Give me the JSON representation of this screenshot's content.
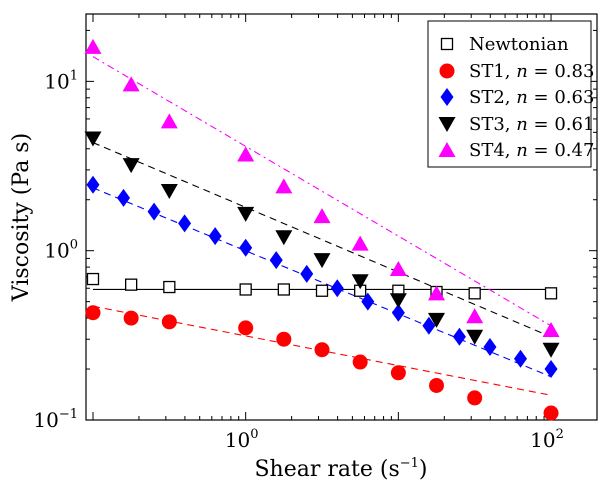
{
  "chart_data": {
    "type": "scatter",
    "xlabel": "Shear rate (s",
    "xlabel_sup": "−1",
    "xlabel_end": ")",
    "ylabel": "Viscosity (Pa s)",
    "xscale": "log",
    "yscale": "log",
    "xlim": [
      0.09,
      200
    ],
    "ylim": [
      0.1,
      25
    ],
    "x_ticks": [
      {
        "value": 1,
        "base": "10",
        "exp": "0"
      },
      {
        "value": 100,
        "base": "10",
        "exp": "2"
      }
    ],
    "y_ticks": [
      {
        "value": 0.1,
        "base": "10",
        "exp": "−1"
      },
      {
        "value": 1,
        "base": "10",
        "exp": "0"
      },
      {
        "value": 10,
        "base": "10",
        "exp": "1"
      }
    ],
    "grid": false,
    "legend_position": "top-right",
    "series": [
      {
        "name": "Newtonian",
        "marker": "square-open",
        "color": "#000000",
        "line_style": "solid",
        "fit": {
          "x0": 0.1,
          "x1": 100,
          "y0": 0.59,
          "y1": 0.59
        },
        "x": [
          0.1,
          0.1778,
          0.3162,
          1.0,
          1.778,
          3.162,
          5.623,
          10,
          17.78,
          31.62,
          100
        ],
        "y": [
          0.68,
          0.63,
          0.61,
          0.59,
          0.59,
          0.58,
          0.58,
          0.58,
          0.57,
          0.56,
          0.56
        ]
      },
      {
        "name": "ST1, n = 0.83",
        "marker": "circle",
        "color": "#ff0000",
        "line_style": "dashed",
        "fit": {
          "x0": 0.1,
          "x1": 100,
          "y0": 0.47,
          "y1": 0.14
        },
        "x": [
          0.1,
          0.1778,
          0.3162,
          1.0,
          1.778,
          3.162,
          5.623,
          10,
          17.78,
          31.62,
          100
        ],
        "y": [
          0.43,
          0.4,
          0.38,
          0.35,
          0.3,
          0.26,
          0.22,
          0.19,
          0.16,
          0.135,
          0.11
        ]
      },
      {
        "name": "ST2, n = 0.63",
        "marker": "diamond",
        "color": "#0000ff",
        "line_style": "dashed",
        "fit": {
          "x0": 0.1,
          "x1": 100,
          "y0": 2.35,
          "y1": 0.18
        },
        "x": [
          0.1,
          0.1585,
          0.2512,
          0.3981,
          0.631,
          1.0,
          1.585,
          2.512,
          3.981,
          6.31,
          10,
          15.85,
          25.12,
          39.81,
          63.1,
          100
        ],
        "y": [
          2.45,
          2.05,
          1.7,
          1.45,
          1.22,
          1.04,
          0.88,
          0.73,
          0.6,
          0.5,
          0.43,
          0.36,
          0.31,
          0.27,
          0.23,
          0.2
        ]
      },
      {
        "name": "ST3, n = 0.61",
        "marker": "triangle-down",
        "color": "#000000",
        "line_style": "dashed",
        "fit": {
          "x0": 0.1,
          "x1": 100,
          "y0": 4.35,
          "y1": 0.31
        },
        "x": [
          0.1,
          0.1778,
          0.3162,
          1.0,
          1.778,
          3.162,
          5.623,
          10,
          17.78,
          31.62,
          100
        ],
        "y": [
          4.6,
          3.2,
          2.25,
          1.65,
          1.2,
          0.88,
          0.66,
          0.51,
          0.39,
          0.31,
          0.26
        ]
      },
      {
        "name": "ST4, n = 0.47",
        "marker": "triangle-up",
        "color": "#ff00ff",
        "line_style": "dashdot",
        "fit": {
          "x0": 0.1,
          "x1": 100,
          "y0": 14.0,
          "y1": 0.36
        },
        "x": [
          0.1,
          0.1778,
          0.3162,
          1.0,
          1.778,
          3.162,
          5.623,
          10,
          17.78,
          31.62,
          100
        ],
        "y": [
          16.0,
          9.6,
          5.8,
          3.7,
          2.4,
          1.6,
          1.1,
          0.78,
          0.56,
          0.41,
          0.34
        ]
      }
    ],
    "legend": [
      {
        "prefix": "Newtonian",
        "n_symbol": "",
        "n_value": ""
      },
      {
        "prefix": "ST1, ",
        "n_symbol": "n",
        "n_value": " = 0.83"
      },
      {
        "prefix": "ST2, ",
        "n_symbol": "n",
        "n_value": " = 0.63"
      },
      {
        "prefix": "ST3, ",
        "n_symbol": "n",
        "n_value": " = 0.61"
      },
      {
        "prefix": "ST4, ",
        "n_symbol": "n",
        "n_value": " = 0.47"
      }
    ]
  }
}
